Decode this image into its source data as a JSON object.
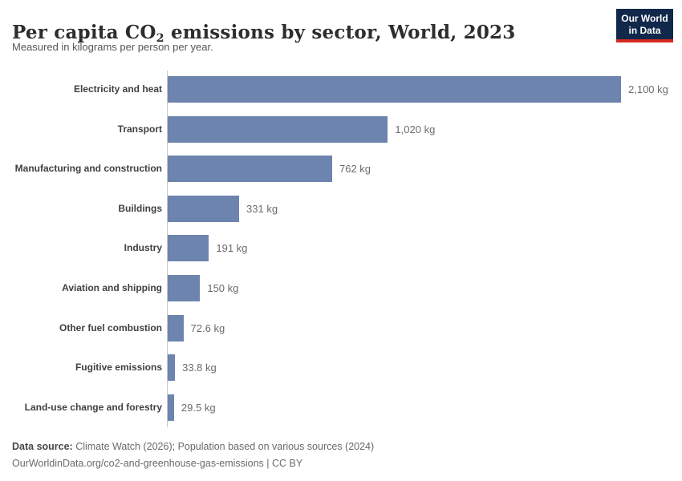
{
  "header": {
    "title_prefix": "Per capita CO",
    "title_sub": "2",
    "title_suffix": " emissions by sector, World, 2023",
    "subtitle": "Measured in kilograms per person per year."
  },
  "logo": {
    "line1": "Our World",
    "line2": "in Data",
    "bg_color": "#12284b",
    "accent_color": "#d42b21"
  },
  "chart_data": {
    "type": "bar",
    "orientation": "horizontal",
    "title": "Per capita CO2 emissions by sector, World, 2023",
    "subtitle": "Measured in kilograms per person per year.",
    "unit": "kg",
    "categories": [
      "Electricity and heat",
      "Transport",
      "Manufacturing and construction",
      "Buildings",
      "Industry",
      "Aviation and shipping",
      "Other fuel combustion",
      "Fugitive emissions",
      "Land-use change and forestry"
    ],
    "values": [
      2100,
      1020,
      762,
      331,
      191,
      150,
      72.6,
      33.8,
      29.5
    ],
    "value_labels": [
      "2,100 kg",
      "1,020 kg",
      "762 kg",
      "331 kg",
      "191 kg",
      "150 kg",
      "72.6 kg",
      "33.8 kg",
      "29.5 kg"
    ],
    "xlim": [
      0,
      2100
    ],
    "grid": false,
    "legend": false,
    "bar_color": "#6c84ae"
  },
  "footer": {
    "source_label": "Data source:",
    "source_text": " Climate Watch (2026); Population based on various sources (2024)",
    "note_line": "OurWorldinData.org/co2-and-greenhouse-gas-emissions | CC BY"
  }
}
